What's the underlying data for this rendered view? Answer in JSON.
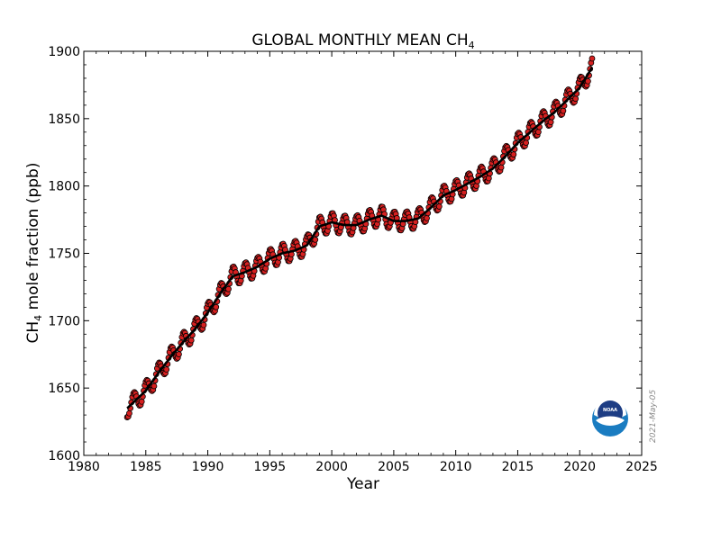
{
  "chart_data": {
    "type": "line",
    "title_main": "GLOBAL MONTHLY MEAN CH",
    "title_sub": "4",
    "xlabel": "Year",
    "ylabel_main": "CH",
    "ylabel_sub": "4",
    "ylabel_rest": " mole fraction (ppb)",
    "xlim": [
      1980,
      2025
    ],
    "ylim": [
      1600,
      1900
    ],
    "xticks": [
      1980,
      1985,
      1990,
      1995,
      2000,
      2005,
      2010,
      2015,
      2020,
      2025
    ],
    "yticks": [
      1600,
      1650,
      1700,
      1750,
      1800,
      1850,
      1900
    ],
    "grid": false,
    "series": [
      {
        "kind": "monthly points",
        "color": "#d62020",
        "trend_key": "trend",
        "seasonal_amplitude": 7
      },
      {
        "kind": "trend line",
        "color": "#000000",
        "x": [
          1983.5,
          1985,
          1986,
          1987,
          1988,
          1989,
          1990,
          1991,
          1992,
          1993,
          1994,
          1995,
          1996,
          1997,
          1998,
          1999,
          2000,
          2001,
          2002,
          2003,
          2004,
          2005,
          2006,
          2007,
          2008,
          2009,
          2010,
          2011,
          2012,
          2013,
          2014,
          2015,
          2016,
          2017,
          2018,
          2019,
          2020,
          2021
        ],
        "y": [
          1635,
          1648,
          1661,
          1673,
          1684,
          1694,
          1706,
          1720,
          1733,
          1736,
          1740,
          1746,
          1750,
          1752,
          1756,
          1770,
          1773,
          1771,
          1771,
          1775,
          1778,
          1774,
          1774,
          1776,
          1784,
          1793,
          1797,
          1802,
          1807,
          1813,
          1822,
          1832,
          1840,
          1848,
          1855,
          1864,
          1873,
          1888
        ]
      }
    ],
    "date_stamp": "2021-May-05",
    "logo_text": "NOAA"
  }
}
